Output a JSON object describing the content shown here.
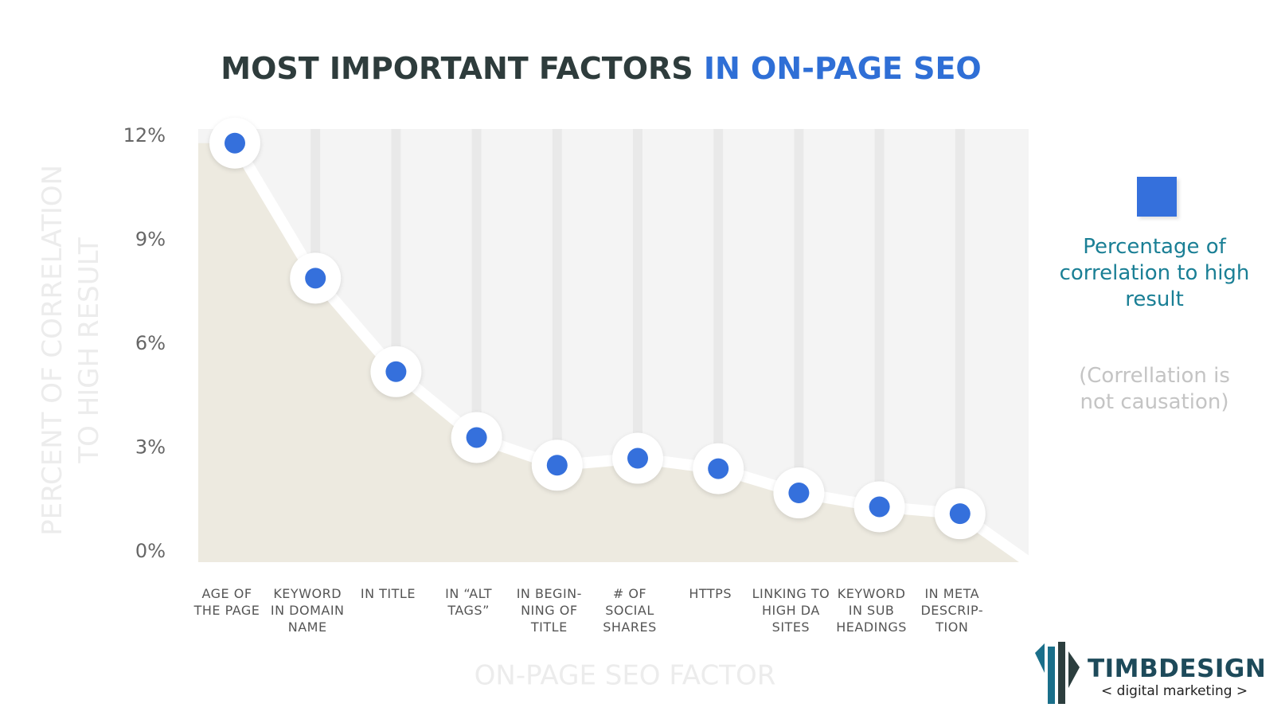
{
  "chart_data": {
    "type": "line",
    "title": [
      "MOST IMPORTANT FACTORS",
      "IN ON-PAGE SEO"
    ],
    "y_label": "PERCENT OF CORRELATION\nTO HIGH RESULT",
    "x_label": "ON-PAGE SEO FACTOR",
    "categories": [
      "AGE OF\nTHE PAGE",
      "KEYWORD\nIN DOMAIN\nNAME",
      "IN TITLE",
      "IN “ALT\nTAGS”",
      "IN BEGIN-\nNING OF\nTITLE",
      "# OF\nSOCIAL\nSHARES",
      "HTTPS",
      "LINKING TO\nHIGH DA\nSITES",
      "KEYWORD\nIN SUB\nHEADINGS",
      "IN META\nDESCRIP-\nTION"
    ],
    "series": [
      {
        "name": "Percentage of\ncorrelation to high\nresult",
        "color": "#3570dc",
        "values": [
          11.8,
          7.9,
          5.2,
          3.3,
          2.5,
          2.7,
          2.4,
          1.7,
          1.3,
          1.1
        ]
      }
    ],
    "ylim": [
      0,
      12
    ],
    "yticks": [
      {
        "value": 0,
        "label": "0%"
      },
      {
        "value": 3,
        "label": "3%"
      },
      {
        "value": 6,
        "label": "6%"
      },
      {
        "value": 9,
        "label": "9%"
      },
      {
        "value": 12,
        "label": "12%"
      }
    ],
    "note": "(Correllation is\nnot causation)",
    "logo": {
      "name": "TIMBDESIGN",
      "tagline": "< digital marketing >"
    }
  }
}
